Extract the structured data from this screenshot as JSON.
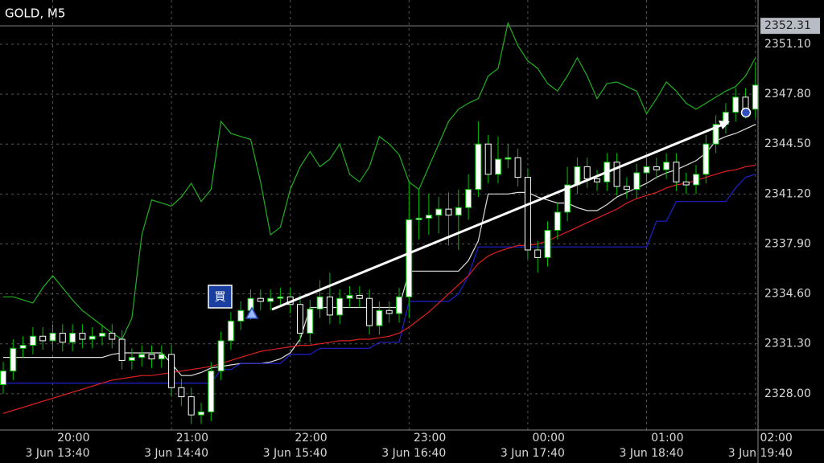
{
  "chart_data": {
    "type": "candlestick",
    "title": "GOLD, M5",
    "current_price": 2352.31,
    "buy_label": "買",
    "ylim": [
      2325.6,
      2352.85
    ],
    "yticks": [
      {
        "value": 2351.1,
        "label": "2351.10"
      },
      {
        "value": 2347.8,
        "label": "2347.80"
      },
      {
        "value": 2344.5,
        "label": "2344.50"
      },
      {
        "value": 2341.2,
        "label": "2341.20"
      },
      {
        "value": 2337.9,
        "label": "2337.90"
      },
      {
        "value": 2334.6,
        "label": "2334.60"
      },
      {
        "value": 2331.3,
        "label": "2331.30"
      },
      {
        "value": 2328,
        "label": "2328.00"
      }
    ],
    "grid": true,
    "categories": [
      null,
      null,
      null,
      null,
      null,
      "3 Jun 13:40",
      null,
      null,
      null,
      null,
      null,
      null,
      null,
      null,
      null,
      null,
      null,
      "3 Jun 14:40",
      null,
      null,
      null,
      null,
      null,
      null,
      null,
      null,
      null,
      null,
      null,
      "3 Jun 15:40",
      null,
      null,
      null,
      null,
      null,
      null,
      null,
      null,
      null,
      null,
      null,
      "3 Jun 16:40",
      null,
      null,
      null,
      null,
      null,
      null,
      null,
      null,
      null,
      null,
      null,
      "3 Jun 17:40",
      null,
      null,
      null,
      null,
      null,
      null,
      null,
      null,
      null,
      null,
      null,
      "3 Jun 18:40",
      null,
      null,
      null,
      null,
      null,
      null,
      null,
      null,
      null,
      null,
      "3 Jun 19:40"
    ],
    "categories_top": [
      null,
      null,
      null,
      null,
      null,
      "20:00",
      null,
      null,
      null,
      null,
      null,
      null,
      null,
      null,
      null,
      null,
      null,
      "21:00",
      null,
      null,
      null,
      null,
      null,
      null,
      null,
      null,
      null,
      null,
      null,
      "22:00",
      null,
      null,
      null,
      null,
      null,
      null,
      null,
      null,
      null,
      null,
      null,
      "23:00",
      null,
      null,
      null,
      null,
      null,
      null,
      null,
      null,
      null,
      null,
      null,
      "00:00",
      null,
      null,
      null,
      null,
      null,
      null,
      null,
      null,
      null,
      null,
      null,
      "01:00",
      null,
      null,
      null,
      null,
      null,
      null,
      null,
      null,
      null,
      null,
      "02:00"
    ],
    "up_color": "#ffffff",
    "down_color": "#000000",
    "wick_color": "#00c000",
    "open": [
      2328.6,
      2329.5,
      2331.0,
      2331.2,
      2331.8,
      2331.5,
      2332.0,
      2331.4,
      2332.0,
      2331.6,
      2331.8,
      2332.0,
      2331.6,
      2330.2,
      2330.4,
      2330.6,
      2330.3,
      2330.6,
      2328.4,
      2327.8,
      2326.6,
      2326.8,
      2329.5,
      2331.5,
      2332.8,
      2333.5,
      2334.3,
      2334.1,
      2334.3,
      2334.4,
      2333.9,
      2332.0,
      2333.6,
      2334.4,
      2333.2,
      2334.3,
      2334.5,
      2334.3,
      2332.5,
      2333.5,
      2333.3,
      2334.4,
      2339.5,
      2339.6,
      2339.8,
      2340.2,
      2339.8,
      2340.3,
      2341.5,
      2344.5,
      2342.5,
      2343.5,
      2343.6,
      2342.3,
      2337.5,
      2337.0,
      2338.8,
      2340.0,
      2341.8,
      2343.0,
      2342.2,
      2342.0,
      2343.3,
      2341.7,
      2341.5,
      2342.6,
      2343.0,
      2342.8,
      2343.3,
      2342.0,
      2341.8,
      2342.5,
      2344.5,
      2345.8,
      2346.6,
      2347.6,
      2346.8
    ],
    "high": [
      2330.1,
      2331.6,
      2331.8,
      2332.4,
      2332.4,
      2332.6,
      2332.6,
      2332.6,
      2332.6,
      2332.4,
      2332.6,
      2332.6,
      2332.2,
      2331.0,
      2331.2,
      2331.2,
      2331.2,
      2331.2,
      2329.0,
      2328.4,
      2327.4,
      2330.1,
      2332.1,
      2333.4,
      2334.1,
      2334.9,
      2334.9,
      2334.9,
      2335.0,
      2335.0,
      2334.5,
      2334.2,
      2335.5,
      2336.0,
      2334.9,
      2335.1,
      2335.1,
      2334.9,
      2334.1,
      2334.1,
      2335.0,
      2342.0,
      2341.5,
      2341.2,
      2341.0,
      2341.3,
      2341.5,
      2342.5,
      2346.0,
      2345.1,
      2345.0,
      2344.5,
      2344.2,
      2342.9,
      2338.1,
      2339.4,
      2340.6,
      2343.0,
      2343.6,
      2343.6,
      2342.8,
      2343.9,
      2343.9,
      2342.3,
      2343.2,
      2343.6,
      2343.6,
      2343.9,
      2343.9,
      2342.6,
      2343.1,
      2345.1,
      2346.4,
      2347.2,
      2348.2,
      2348.2,
      2349.9
    ],
    "low": [
      2328.0,
      2328.9,
      2330.4,
      2330.6,
      2330.9,
      2330.9,
      2330.8,
      2330.8,
      2331.0,
      2331.0,
      2331.2,
      2331.0,
      2329.6,
      2329.6,
      2329.8,
      2329.7,
      2329.7,
      2327.8,
      2327.2,
      2326.0,
      2326.0,
      2326.2,
      2328.9,
      2330.9,
      2332.2,
      2332.9,
      2333.5,
      2333.5,
      2333.7,
      2333.3,
      2331.4,
      2331.4,
      2333.0,
      2332.6,
      2332.6,
      2333.7,
      2333.7,
      2331.9,
      2331.9,
      2332.7,
      2332.7,
      2333.0,
      2338.2,
      2338.5,
      2338.6,
      2337.8,
      2337.5,
      2339.5,
      2341.0,
      2341.9,
      2341.9,
      2342.9,
      2341.7,
      2336.9,
      2336.0,
      2336.4,
      2338.2,
      2339.4,
      2341.2,
      2341.6,
      2341.4,
      2341.4,
      2341.1,
      2340.9,
      2340.9,
      2342.0,
      2342.2,
      2342.2,
      2341.4,
      2341.2,
      2341.2,
      2341.9,
      2343.9,
      2345.2,
      2346.0,
      2346.2,
      2346.2
    ],
    "close": [
      2329.5,
      2331.0,
      2331.2,
      2331.8,
      2331.5,
      2332.0,
      2331.4,
      2332.0,
      2331.6,
      2331.8,
      2332.0,
      2331.6,
      2330.2,
      2330.4,
      2330.6,
      2330.3,
      2330.6,
      2328.4,
      2327.8,
      2326.6,
      2326.8,
      2329.5,
      2331.5,
      2332.8,
      2333.5,
      2334.3,
      2334.1,
      2334.3,
      2334.4,
      2333.9,
      2332.0,
      2333.6,
      2334.4,
      2333.2,
      2334.3,
      2334.5,
      2334.3,
      2332.5,
      2333.5,
      2333.3,
      2334.4,
      2339.5,
      2339.6,
      2339.8,
      2340.2,
      2339.8,
      2340.3,
      2341.5,
      2344.5,
      2342.5,
      2343.5,
      2343.6,
      2342.3,
      2337.5,
      2337.0,
      2338.8,
      2340.0,
      2341.8,
      2343.0,
      2342.2,
      2342.0,
      2343.3,
      2341.7,
      2341.5,
      2342.6,
      2343.0,
      2342.8,
      2343.3,
      2342.0,
      2341.8,
      2342.5,
      2344.5,
      2345.8,
      2346.6,
      2347.6,
      2346.8,
      2348.4
    ],
    "series": [
      {
        "color": "#20b020",
        "values": [
          2334.4,
          2334.4,
          2334.2,
          2334.0,
          2335.0,
          2335.8,
          2335.0,
          2334.2,
          2333.5,
          2333.0,
          2332.5,
          2332.0,
          2331.6,
          2333,
          2338.5,
          2340.8,
          2340.6,
          2340.4,
          2341,
          2341.9,
          2340.7,
          2341.5,
          2346,
          2345.2,
          2345,
          2344.8,
          2342,
          2338.5,
          2339,
          2341.5,
          2343,
          2344,
          2343,
          2343.5,
          2344.5,
          2342.5,
          2342,
          2343,
          2345,
          2344.5,
          2343.8,
          2342,
          2341.5,
          2343,
          2344.5,
          2346,
          2346.8,
          2347.2,
          2347.5,
          2349,
          2349.5,
          2352.5,
          2351,
          2350,
          2349.5,
          2348.5,
          2348,
          2349,
          2350.2,
          2349,
          2347.5,
          2348.5,
          2348.6,
          2348.3,
          2348,
          2346.5,
          2347.5,
          2348.6,
          2348,
          2347.2,
          2346.8,
          2347.2,
          2347.6,
          2348,
          2348.3,
          2349,
          2350.2
        ]
      },
      {
        "color": "#e0e0e0",
        "values": [
          2330.4,
          2330.4,
          2330.4,
          2330.4,
          2330.4,
          2330.4,
          2330.4,
          2330.4,
          2330.4,
          2330.4,
          2330.4,
          2330.6,
          2330.7,
          2330.7,
          2330.7,
          2330.7,
          2330.7,
          2330.0,
          2329.2,
          2329.2,
          2329.4,
          2329.7,
          2329.8,
          2329.9,
          2330.0,
          2330.0,
          2330.0,
          2330.1,
          2330.3,
          2330.7,
          2331.6,
          2333.7,
          2333.7,
          2333.7,
          2333.7,
          2333.7,
          2333.7,
          2333.7,
          2333.7,
          2333.7,
          2333.7,
          2336.1,
          2336.1,
          2336.1,
          2336.1,
          2336.1,
          2336.1,
          2336.8,
          2338.1,
          2341.2,
          2341.2,
          2341.2,
          2341.3,
          2341.3,
          2341.0,
          2340.8,
          2340.6,
          2340.6,
          2340.3,
          2340.1,
          2340.1,
          2340.5,
          2341.0,
          2341.3,
          2341.6,
          2341.9,
          2342.3,
          2342.6,
          2342.8,
          2343.1,
          2343.4,
          2343.9,
          2344.7,
          2345.0,
          2345.2,
          2345.5,
          2345.8
        ]
      },
      {
        "color": "#2020d0",
        "values": [
          2328.7,
          2328.7,
          2328.7,
          2328.7,
          2328.7,
          2328.7,
          2328.7,
          2328.7,
          2328.7,
          2328.7,
          2328.7,
          2328.7,
          2328.7,
          2328.7,
          2328.7,
          2328.7,
          2328.7,
          2328.7,
          2328.7,
          2328.7,
          2328.7,
          2328.7,
          2329.6,
          2329.6,
          2330.0,
          2330.0,
          2330.0,
          2330.0,
          2330.0,
          2330.6,
          2330.6,
          2330.6,
          2331.0,
          2331.0,
          2331.0,
          2331.0,
          2331.0,
          2331.0,
          2331.4,
          2331.4,
          2331.4,
          2334.1,
          2334.1,
          2334.1,
          2334.1,
          2334.1,
          2334.6,
          2335.8,
          2337.7,
          2337.7,
          2337.7,
          2337.7,
          2337.7,
          2337.7,
          2337.7,
          2337.7,
          2337.7,
          2337.7,
          2337.7,
          2337.7,
          2337.7,
          2337.7,
          2337.7,
          2337.7,
          2337.7,
          2337.7,
          2339.4,
          2339.4,
          2340.7,
          2340.7,
          2340.7,
          2340.7,
          2340.7,
          2340.7,
          2341.6,
          2342.3,
          2342.5
        ]
      },
      {
        "color": "#e02020",
        "values": [
          2326.7,
          2326.9,
          2327.1,
          2327.3,
          2327.5,
          2327.7,
          2327.9,
          2328.1,
          2328.3,
          2328.5,
          2328.7,
          2328.9,
          2329.0,
          2329.1,
          2329.2,
          2329.2,
          2329.3,
          2329.4,
          2329.5,
          2329.6,
          2329.7,
          2329.8,
          2330.0,
          2330.2,
          2330.4,
          2330.6,
          2330.8,
          2330.9,
          2331.0,
          2331.1,
          2331.2,
          2331.2,
          2331.3,
          2331.4,
          2331.5,
          2331.5,
          2331.6,
          2331.6,
          2331.7,
          2331.8,
          2332.0,
          2332.4,
          2332.9,
          2333.4,
          2334.0,
          2334.6,
          2335.2,
          2335.8,
          2336.6,
          2337.1,
          2337.4,
          2337.6,
          2337.8,
          2337.8,
          2337.9,
          2338.1,
          2338.4,
          2338.7,
          2339.0,
          2339.3,
          2339.6,
          2339.9,
          2340.2,
          2340.6,
          2340.9,
          2341.1,
          2341.3,
          2341.6,
          2341.8,
          2341.9,
          2342.1,
          2342.3,
          2342.5,
          2342.7,
          2342.8,
          2343.0,
          2343.1
        ]
      }
    ]
  }
}
